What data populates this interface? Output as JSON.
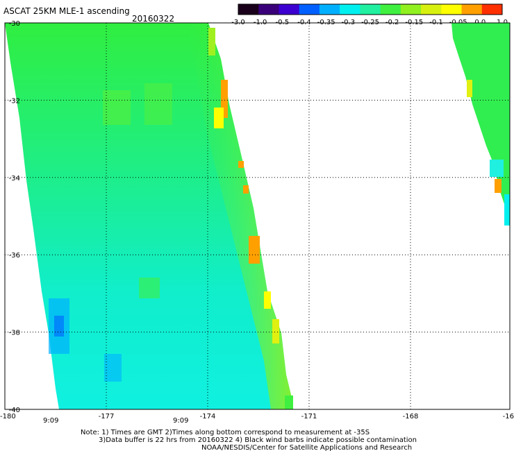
{
  "header": {
    "title": "ASCAT 25KM MLE-1 ascending",
    "date": "20160322"
  },
  "colorbar": {
    "ticks": [
      "-3.0",
      "-1.0",
      "-0.5",
      "-0.4",
      "-0.35",
      "-0.3",
      "-0.25",
      "-0.2",
      "-0.15",
      "-0.1",
      "-0.05",
      "0.0",
      "1.0"
    ],
    "colors": [
      "#1a001a",
      "#3a007a",
      "#3c00d0",
      "#0060ff",
      "#00b0ff",
      "#00f0f0",
      "#20f0a0",
      "#40f040",
      "#90f020",
      "#d8f010",
      "#ffff00",
      "#ffa000",
      "#ff3000"
    ]
  },
  "map": {
    "lat_labels": [
      "-30",
      "-32",
      "-34",
      "-36",
      "-38",
      "-40"
    ],
    "lon_labels": [
      "-180",
      "-177",
      "-174",
      "-171",
      "-168",
      "-16"
    ],
    "time_labels": [
      "9:09",
      "9:09"
    ],
    "time_color": "#cc0000"
  },
  "footer": {
    "line1": "Note: 1) Times are GMT 2)Times along bottom correspond to measurement at -35S",
    "line2": "3)Data buffer is 22 hrs from 20160322 4) Black wind barbs indicate possible contamination",
    "line3": "NOAA/NESDIS/Center for Satellite Applications and Research"
  }
}
